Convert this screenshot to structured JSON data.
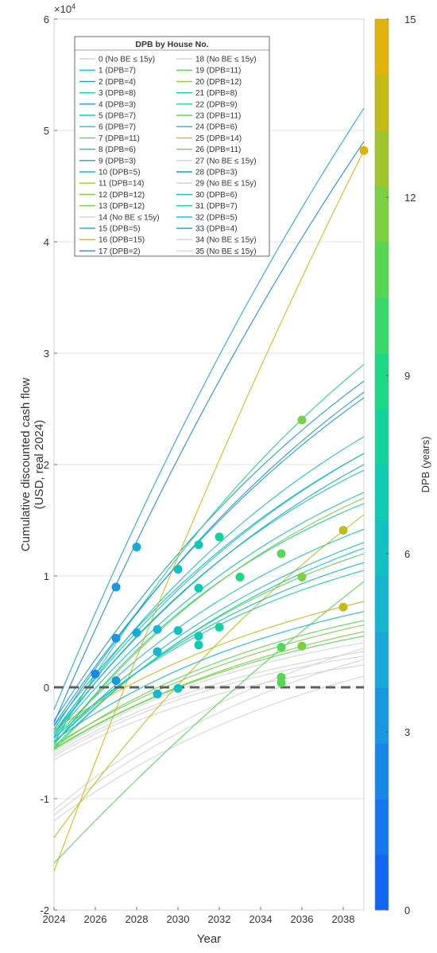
{
  "chart_data": {
    "type": "line",
    "title": "",
    "xlabel": "Year",
    "ylabel": "Cumulative discounted cash flow (USD, real 2024)",
    "y_exponent_label": "×10",
    "y_exponent_power": "4",
    "xlim": [
      2024,
      2039
    ],
    "ylim": [
      -20000,
      60000
    ],
    "x_ticks": [
      2024,
      2026,
      2028,
      2030,
      2032,
      2034,
      2036,
      2038
    ],
    "y_ticks": [
      -2,
      -1,
      0,
      1,
      2,
      3,
      4,
      5,
      6
    ],
    "grid": true,
    "colorbar": {
      "label": "DPB (years)",
      "range": [
        0,
        15
      ],
      "ticks": [
        0,
        3,
        6,
        9,
        12,
        15
      ],
      "colors": [
        "#1466f2",
        "#1676ee",
        "#1887e8",
        "#1998e2",
        "#1aa7da",
        "#18b5d0",
        "#14c1c2",
        "#0fcbb1",
        "#10d29a",
        "#1ed782",
        "#36d96a",
        "#57d654",
        "#7ccf40",
        "#a0c52c",
        "#c3bb18",
        "#e0b30c"
      ]
    },
    "zero_line": {
      "y": 0,
      "color": "#5e5e5e"
    },
    "legend": {
      "title": "DPB by House No.",
      "placement": "top-left",
      "entries": [
        "0 (No BE ≤ 15y)",
        "1 (DPB=7)",
        "2 (DPB=4)",
        "3 (DPB=8)",
        "4 (DPB=3)",
        "5 (DPB=7)",
        "6 (DPB=7)",
        "7 (DPB=11)",
        "8 (DPB=6)",
        "9 (DPB=3)",
        "10 (DPB=5)",
        "11 (DPB=14)",
        "12 (DPB=12)",
        "13 (DPB=12)",
        "14 (No BE ≤ 15y)",
        "15 (DPB=5)",
        "16 (DPB=15)",
        "17 (DPB=2)",
        "18 (No BE ≤ 15y)",
        "19 (DPB=11)",
        "20 (DPB=12)",
        "21 (DPB=8)",
        "22 (DPB=9)",
        "23 (DPB=11)",
        "24 (DPB=6)",
        "25 (DPB=14)",
        "26 (DPB=11)",
        "27 (No BE ≤ 15y)",
        "28 (DPB=3)",
        "29 (No BE ≤ 15y)",
        "30 (DPB=6)",
        "31 (DPB=7)",
        "32 (DPB=5)",
        "33 (DPB=4)",
        "34 (No BE ≤ 15y)",
        "35 (No BE ≤ 15y)"
      ]
    },
    "series": [
      {
        "dpb": null,
        "y0": -12000,
        "y15": 1000,
        "k": 0.07
      },
      {
        "dpb": 7,
        "y0": -4000,
        "y15": 21000,
        "k": 0.06
      },
      {
        "dpb": 4,
        "y0": -2000,
        "y15": 52000,
        "k": 0.03
      },
      {
        "dpb": 8,
        "y0": -5200,
        "y15": 16500,
        "k": 0.08
      },
      {
        "dpb": 3,
        "y0": -3000,
        "y15": 27500,
        "k": 0.05
      },
      {
        "dpb": 7,
        "y0": -4600,
        "y15": 14200,
        "k": 0.07
      },
      {
        "dpb": 7,
        "y0": -4400,
        "y15": 19500,
        "k": 0.07
      },
      {
        "dpb": 11,
        "y0": -5400,
        "y15": 6000,
        "k": 0.08
      },
      {
        "dpb": 6,
        "y0": -4200,
        "y15": 22500,
        "k": 0.06
      },
      {
        "dpb": 3,
        "y0": -3800,
        "y15": 26500,
        "k": 0.05
      },
      {
        "dpb": 5,
        "y0": -3500,
        "y15": 21000,
        "k": 0.06
      },
      {
        "dpb": 14,
        "y0": -13500,
        "y15": 15500,
        "k": 0.04
      },
      {
        "dpb": 12,
        "y0": -5500,
        "y15": 5000,
        "k": 0.07
      },
      {
        "dpb": 12,
        "y0": -5200,
        "y15": 5600,
        "k": 0.07
      },
      {
        "dpb": null,
        "y0": -11500,
        "y15": 2500,
        "k": 0.07
      },
      {
        "dpb": 5,
        "y0": -5000,
        "y15": 11200,
        "k": 0.08
      },
      {
        "dpb": 15,
        "y0": -16500,
        "y15": 48200,
        "k": 0.02
      },
      {
        "dpb": 2,
        "y0": -3200,
        "y15": 49000,
        "k": 0.03
      },
      {
        "dpb": null,
        "y0": -6000,
        "y15": 3200,
        "k": 0.09
      },
      {
        "dpb": 11,
        "y0": -5600,
        "y15": 12000,
        "k": 0.08
      },
      {
        "dpb": 12,
        "y0": -5200,
        "y15": 17000,
        "k": 0.07
      },
      {
        "dpb": 8,
        "y0": -4600,
        "y15": 10500,
        "k": 0.08
      },
      {
        "dpb": 9,
        "y0": -5000,
        "y15": 29000,
        "k": 0.05
      },
      {
        "dpb": 11,
        "y0": -15800,
        "y15": 9500,
        "k": 0.02
      },
      {
        "dpb": 6,
        "y0": -4500,
        "y15": 17500,
        "k": 0.07
      },
      {
        "dpb": 14,
        "y0": -3800,
        "y15": 7700,
        "k": 0.07
      },
      {
        "dpb": 11,
        "y0": -5600,
        "y15": 4600,
        "k": 0.08
      },
      {
        "dpb": null,
        "y0": -5800,
        "y15": 4000,
        "k": 0.09
      },
      {
        "dpb": 3,
        "y0": -3400,
        "y15": 26000,
        "k": 0.05
      },
      {
        "dpb": null,
        "y0": -6500,
        "y15": 2000,
        "k": 0.09
      },
      {
        "dpb": 6,
        "y0": -5000,
        "y15": 13000,
        "k": 0.07
      },
      {
        "dpb": 7,
        "y0": -5400,
        "y15": 12500,
        "k": 0.07
      },
      {
        "dpb": 5,
        "y0": -4800,
        "y15": 6800,
        "k": 0.08
      },
      {
        "dpb": 4,
        "y0": -4200,
        "y15": 20000,
        "k": 0.06
      },
      {
        "dpb": null,
        "y0": -6200,
        "y15": 2800,
        "k": 0.09
      },
      {
        "dpb": null,
        "y0": -11000,
        "y15": 3500,
        "k": 0.07
      }
    ],
    "breakeven_markers": [
      {
        "x": 2026,
        "y": 1200,
        "dpb": 2
      },
      {
        "x": 2027,
        "y": 9000,
        "dpb": 3
      },
      {
        "x": 2027,
        "y": 4400,
        "dpb": 3
      },
      {
        "x": 2027,
        "y": 600,
        "dpb": 3
      },
      {
        "x": 2028,
        "y": 12600,
        "dpb": 4
      },
      {
        "x": 2028,
        "y": 4900,
        "dpb": 4
      },
      {
        "x": 2029,
        "y": 5200,
        "dpb": 5
      },
      {
        "x": 2029,
        "y": 3200,
        "dpb": 5
      },
      {
        "x": 2029,
        "y": -600,
        "dpb": 5
      },
      {
        "x": 2030,
        "y": 10600,
        "dpb": 6
      },
      {
        "x": 2030,
        "y": 5100,
        "dpb": 6
      },
      {
        "x": 2030,
        "y": -100,
        "dpb": 6
      },
      {
        "x": 2031,
        "y": 12800,
        "dpb": 7
      },
      {
        "x": 2031,
        "y": 8900,
        "dpb": 7
      },
      {
        "x": 2031,
        "y": 4600,
        "dpb": 7
      },
      {
        "x": 2031,
        "y": 3800,
        "dpb": 7
      },
      {
        "x": 2032,
        "y": 13500,
        "dpb": 8
      },
      {
        "x": 2032,
        "y": 5400,
        "dpb": 8
      },
      {
        "x": 2033,
        "y": 9900,
        "dpb": 9
      },
      {
        "x": 2035,
        "y": 12000,
        "dpb": 11
      },
      {
        "x": 2035,
        "y": 3600,
        "dpb": 11
      },
      {
        "x": 2035,
        "y": 900,
        "dpb": 11
      },
      {
        "x": 2035,
        "y": 400,
        "dpb": 11
      },
      {
        "x": 2036,
        "y": 24000,
        "dpb": 12
      },
      {
        "x": 2036,
        "y": 9900,
        "dpb": 12
      },
      {
        "x": 2036,
        "y": 3700,
        "dpb": 12
      },
      {
        "x": 2038,
        "y": 14100,
        "dpb": 14
      },
      {
        "x": 2038,
        "y": 7200,
        "dpb": 14
      },
      {
        "x": 2039,
        "y": 48200,
        "dpb": 15
      }
    ]
  }
}
